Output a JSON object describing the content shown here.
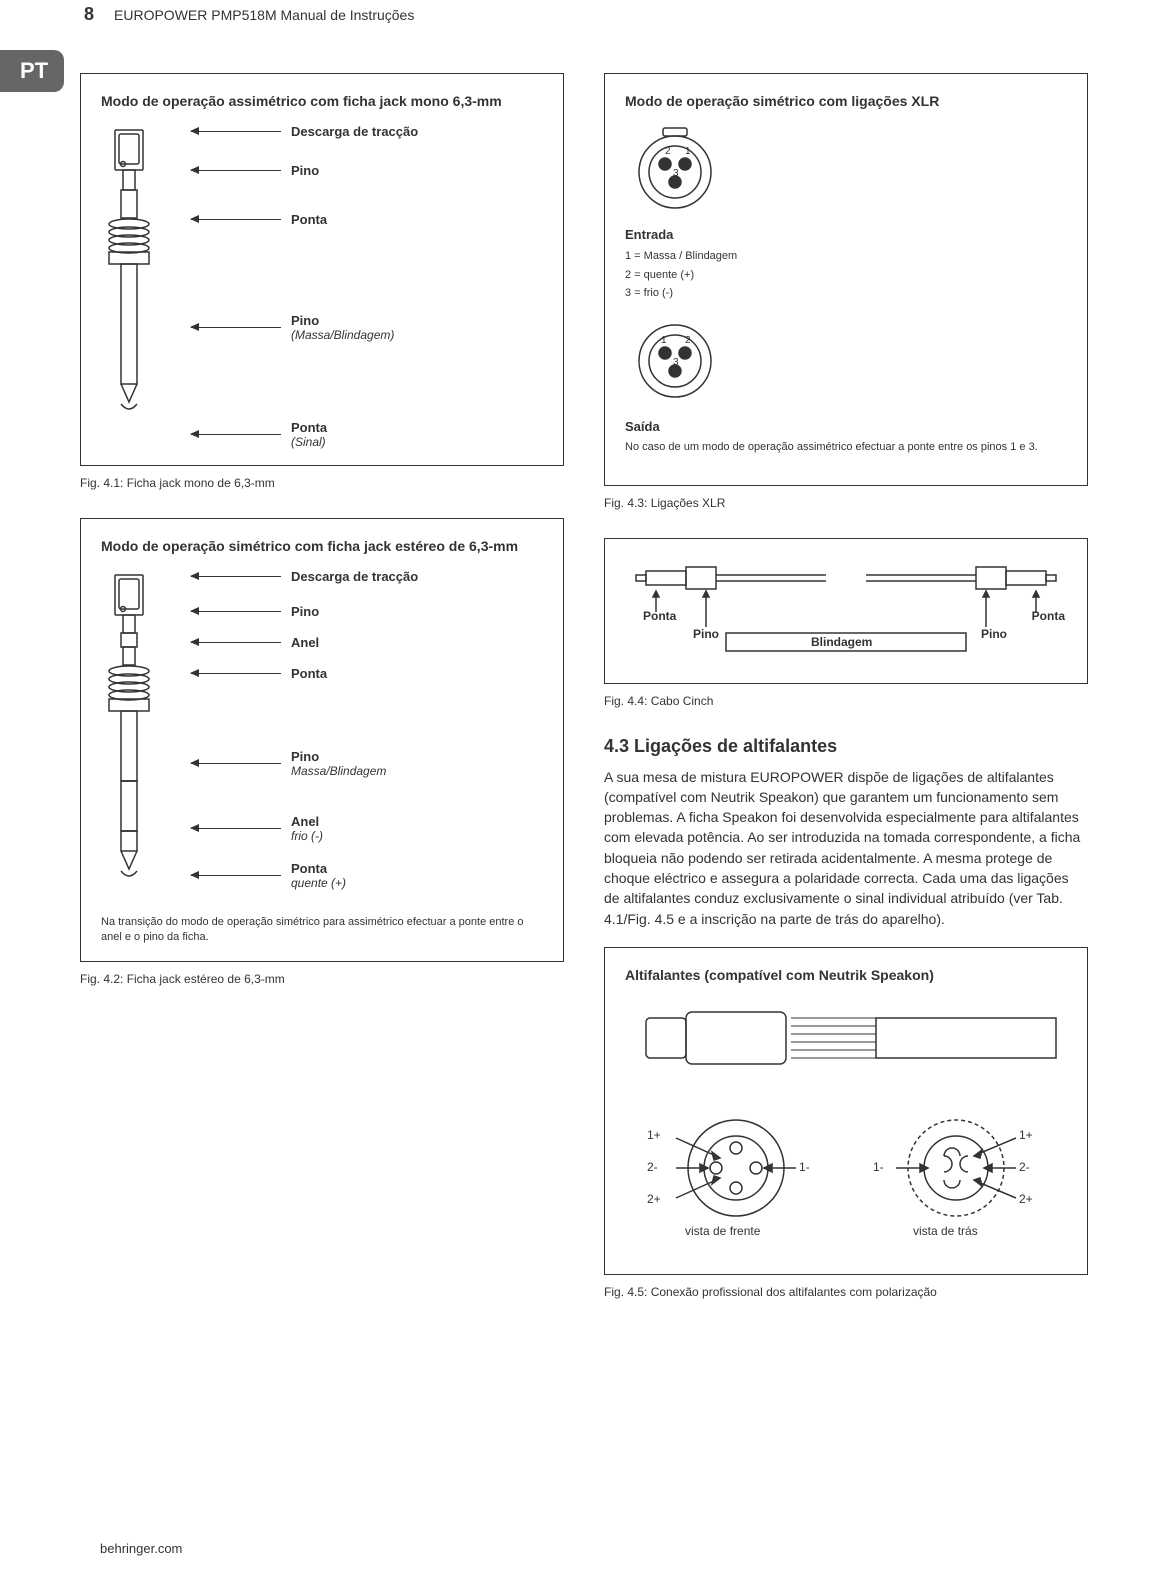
{
  "page": {
    "number": "8",
    "manual_title": "EUROPOWER PMP518M Manual de Instruções",
    "language_tab": "PT",
    "footer_url": "behringer.com"
  },
  "colors": {
    "text": "#333333",
    "border": "#333333",
    "background": "#ffffff",
    "tab_bg": "#666666",
    "tab_fg": "#ffffff"
  },
  "fig41": {
    "box_title": "Modo de operação assimétrico com ficha jack mono 6,3-mm",
    "caption": "Fig. 4.1: Ficha jack mono de 6,3-mm",
    "labels": [
      {
        "main": "Descarga de tracção",
        "sub": "",
        "gap_after": 24
      },
      {
        "main": "Pino",
        "sub": "",
        "gap_after": 34
      },
      {
        "main": "Ponta",
        "sub": "",
        "gap_after": 86
      },
      {
        "main": "Pino",
        "sub": "(Massa/Blindagem)",
        "gap_after": 78
      },
      {
        "main": "Ponta",
        "sub": "(Sinal)",
        "gap_after": 0
      }
    ]
  },
  "fig42": {
    "box_title": "Modo de operação simétrico com ficha jack estéreo de 6,3-mm",
    "caption": "Fig. 4.2: Ficha jack estéreo de 6,3-mm",
    "labels": [
      {
        "main": "Descarga de tracção",
        "sub": "",
        "gap_after": 20
      },
      {
        "main": "Pino",
        "sub": "",
        "gap_after": 16
      },
      {
        "main": "Anel",
        "sub": "",
        "gap_after": 16
      },
      {
        "main": "Ponta",
        "sub": "",
        "gap_after": 68
      },
      {
        "main": "Pino",
        "sub": "Massa/Blindagem",
        "gap_after": 36
      },
      {
        "main": "Anel",
        "sub": "frio (-)",
        "gap_after": 18
      },
      {
        "main": "Ponta",
        "sub": "quente (+)",
        "gap_after": 0
      }
    ],
    "note": "Na transição do modo de operação simétrico para assimétrico efectuar a ponte entre o anel e o pino da ficha."
  },
  "fig43": {
    "box_title": "Modo de operação simétrico com ligações XLR",
    "caption": "Fig. 4.3: Ligações XLR",
    "input_label": "Entrada",
    "pins": {
      "p1": "1 = Massa / Blindagem",
      "p2": "2 = quente (+)",
      "p3": "3 = frio (-)"
    },
    "output_label": "Saída",
    "note": "No caso de um modo de operação assimétrico efectuar a ponte entre os pinos 1 e 3.",
    "pin_nums": {
      "n1": "1",
      "n2": "2",
      "n3": "3"
    }
  },
  "fig44": {
    "caption": "Fig. 4.4: Cabo Cinch",
    "labels": {
      "ponta": "Ponta",
      "pino": "Pino",
      "blindagem": "Blindagem"
    }
  },
  "section43": {
    "heading": "4.3  Ligações de altifalantes",
    "body": "A sua mesa de mistura EUROPOWER dispõe de ligações de altifalantes (compatível com Neutrik Speakon) que garantem um funcionamento sem problemas. A ficha Speakon foi desenvolvida especialmente para altifalantes com elevada potência. Ao ser introduzida na tomada correspondente, a ficha bloqueia não podendo ser retirada acidentalmente. A mesma protege de choque eléctrico e assegura a polaridade correcta. Cada uma das ligações de altifalantes conduz exclusivamente o sinal individual atribuído (ver Tab. 4.1/Fig. 4.5 e a inscrição na parte de trás do aparelho)."
  },
  "fig45": {
    "box_title": "Altifalantes (compatível com Neutrik Speakon)",
    "caption": "Fig. 4.5: Conexão profissional dos altifalantes com polarização",
    "pins": {
      "p1p": "1+",
      "p1m": "1-",
      "p2p": "2+",
      "p2m": "2-"
    },
    "views": {
      "front": "vista de frente",
      "back": "vista de trás"
    }
  }
}
